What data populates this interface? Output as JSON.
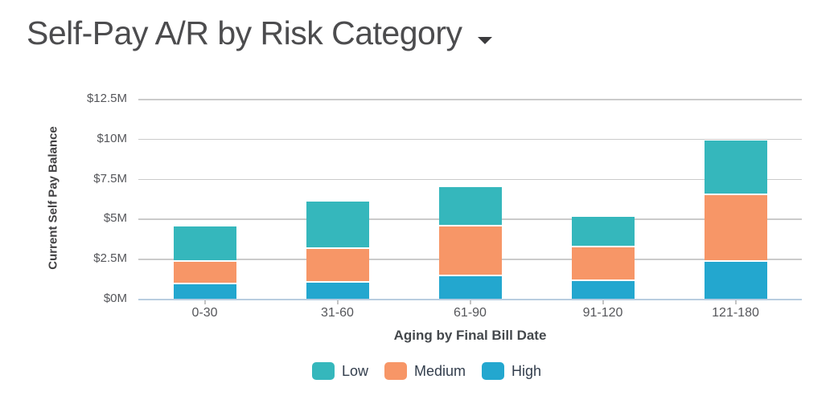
{
  "header": {
    "title": "Self-Pay A/R by Risk Category",
    "dropdown_icon": "caret-down"
  },
  "colors": {
    "low": "#35b7bc",
    "medium": "#f79667",
    "high": "#23a7cf",
    "gridline": "#cbcbcb",
    "axis_line": "#b9cde0",
    "title_text": "#4c4c4e",
    "axis_title_text": "#414042",
    "tick_text": "#55565a",
    "legend_text": "#333e4d"
  },
  "chart_data": {
    "type": "bar",
    "stacked": true,
    "title": "Self-Pay A/R by Risk Category",
    "categories": [
      "0-30",
      "31-60",
      "61-90",
      "91-120",
      "121-180"
    ],
    "series": [
      {
        "name": "Low",
        "color": "#35b7bc",
        "values": [
          2.1,
          2.9,
          2.4,
          1.8,
          3.3
        ]
      },
      {
        "name": "Medium",
        "color": "#f79667",
        "values": [
          1.4,
          2.1,
          3.1,
          2.1,
          4.2
        ]
      },
      {
        "name": "High",
        "color": "#23a7cf",
        "values": [
          1.0,
          1.1,
          1.5,
          1.2,
          2.4
        ]
      }
    ],
    "stack_order_note": "High at bottom, Medium middle, Low on top",
    "totals": [
      4.5,
      6.1,
      7.0,
      5.1,
      9.9
    ],
    "unit": "$M",
    "xlabel": "Aging by Final Bill Date",
    "ylabel": "Current Self Pay Balance",
    "y_ticks": [
      "$12.5M",
      "$10M",
      "$7.5M",
      "$5M",
      "$2.5M",
      "$0M"
    ],
    "y_tick_values": [
      12.5,
      10,
      7.5,
      5,
      2.5,
      0
    ],
    "ylim": [
      0,
      12.5
    ],
    "grid": true,
    "legend_position": "bottom",
    "legend": [
      "Low",
      "Medium",
      "High"
    ]
  }
}
